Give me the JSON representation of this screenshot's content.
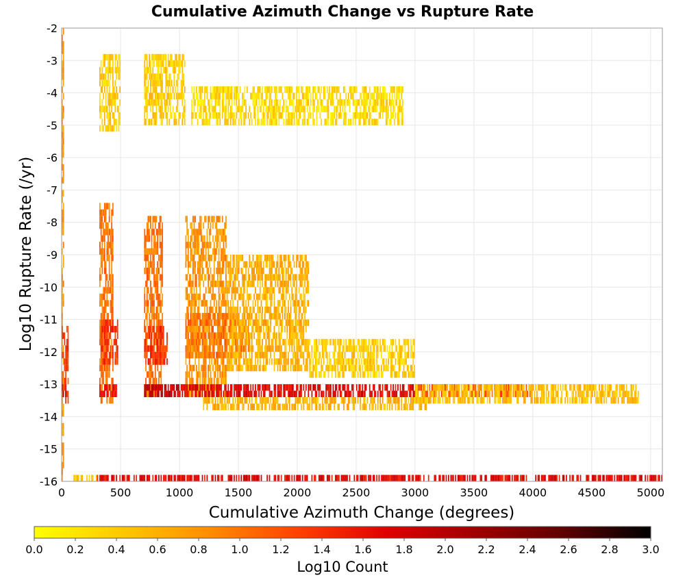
{
  "chart_data": {
    "type": "heatmap",
    "title": "Cumulative Azimuth Change vs Rupture Rate",
    "xlabel": "Cumulative Azimuth Change (degrees)",
    "ylabel": "Log10 Rupture Rate (/yr)",
    "xlim": [
      0,
      5100
    ],
    "ylim": [
      -16,
      -2
    ],
    "x_ticks": [
      "0",
      "500",
      "1000",
      "1500",
      "2000",
      "2500",
      "3000",
      "3500",
      "4000",
      "4500",
      "5000"
    ],
    "y_ticks": [
      "-2",
      "-3",
      "-4",
      "-5",
      "-6",
      "-7",
      "-8",
      "-9",
      "-10",
      "-11",
      "-12",
      "-13",
      "-14",
      "-15",
      "-16"
    ],
    "x_bin_width": 10,
    "y_bin_width": 0.2,
    "grid": true,
    "colorbar": {
      "label": "Log10 Count",
      "range": [
        0.0,
        3.0
      ],
      "ticks": [
        "0.0",
        "0.2",
        "0.4",
        "0.6",
        "0.8",
        "1.0",
        "1.2",
        "1.4",
        "1.6",
        "1.8",
        "2.0",
        "2.2",
        "2.4",
        "2.6",
        "2.8",
        "3.0"
      ],
      "colors": [
        "#ffff00",
        "#ffc800",
        "#ff8c00",
        "#ff4000",
        "#e00000",
        "#a00000",
        "#600000",
        "#000000"
      ]
    },
    "regions": [
      {
        "x": [
          0,
          20
        ],
        "y": [
          -16,
          -2
        ],
        "value": 0.8
      },
      {
        "x": [
          0,
          60
        ],
        "y": [
          -13.6,
          -11.2
        ],
        "value": 1.3
      },
      {
        "x": [
          0,
          60
        ],
        "y": [
          -13.4,
          -13.0
        ],
        "value": 2.0
      },
      {
        "x": [
          320,
          440
        ],
        "y": [
          -13.6,
          -7.4
        ],
        "value": 1.0
      },
      {
        "x": [
          320,
          480
        ],
        "y": [
          -13.4,
          -13.0
        ],
        "value": 1.6
      },
      {
        "x": [
          330,
          480
        ],
        "y": [
          -12.4,
          -11.0
        ],
        "value": 1.4
      },
      {
        "x": [
          320,
          500
        ],
        "y": [
          -5.2,
          -2.8
        ],
        "value": 0.4
      },
      {
        "x": [
          700,
          860
        ],
        "y": [
          -13.4,
          -7.8
        ],
        "value": 1.0
      },
      {
        "x": [
          700,
          900
        ],
        "y": [
          -12.4,
          -11.2
        ],
        "value": 1.4
      },
      {
        "x": [
          700,
          1000
        ],
        "y": [
          -13.4,
          -13.0
        ],
        "value": 1.9
      },
      {
        "x": [
          700,
          1050
        ],
        "y": [
          -5.0,
          -2.8
        ],
        "value": 0.4
      },
      {
        "x": [
          1050,
          1400
        ],
        "y": [
          -13.4,
          -7.8
        ],
        "value": 0.8
      },
      {
        "x": [
          1050,
          1600
        ],
        "y": [
          -12.2,
          -10.8
        ],
        "value": 1.0
      },
      {
        "x": [
          1100,
          2900
        ],
        "y": [
          -5.0,
          -3.8
        ],
        "value": 0.3
      },
      {
        "x": [
          1000,
          3000
        ],
        "y": [
          -13.4,
          -13.0
        ],
        "value": 1.7
      },
      {
        "x": [
          1400,
          2100
        ],
        "y": [
          -12.6,
          -9.0
        ],
        "value": 0.6
      },
      {
        "x": [
          2100,
          3000
        ],
        "y": [
          -12.8,
          -11.6
        ],
        "value": 0.4
      },
      {
        "x": [
          1200,
          3100
        ],
        "y": [
          -13.8,
          -13.4
        ],
        "value": 0.6
      },
      {
        "x": [
          3000,
          4000
        ],
        "y": [
          -13.4,
          -13.0
        ],
        "value": 1.2
      },
      {
        "x": [
          3000,
          4900
        ],
        "y": [
          -13.6,
          -13.0
        ],
        "value": 0.5
      },
      {
        "x": [
          300,
          5100
        ],
        "y": [
          -16.0,
          -15.8
        ],
        "value": 1.7
      },
      {
        "x": [
          100,
          300
        ],
        "y": [
          -16.0,
          -15.8
        ],
        "value": 0.5
      }
    ]
  }
}
